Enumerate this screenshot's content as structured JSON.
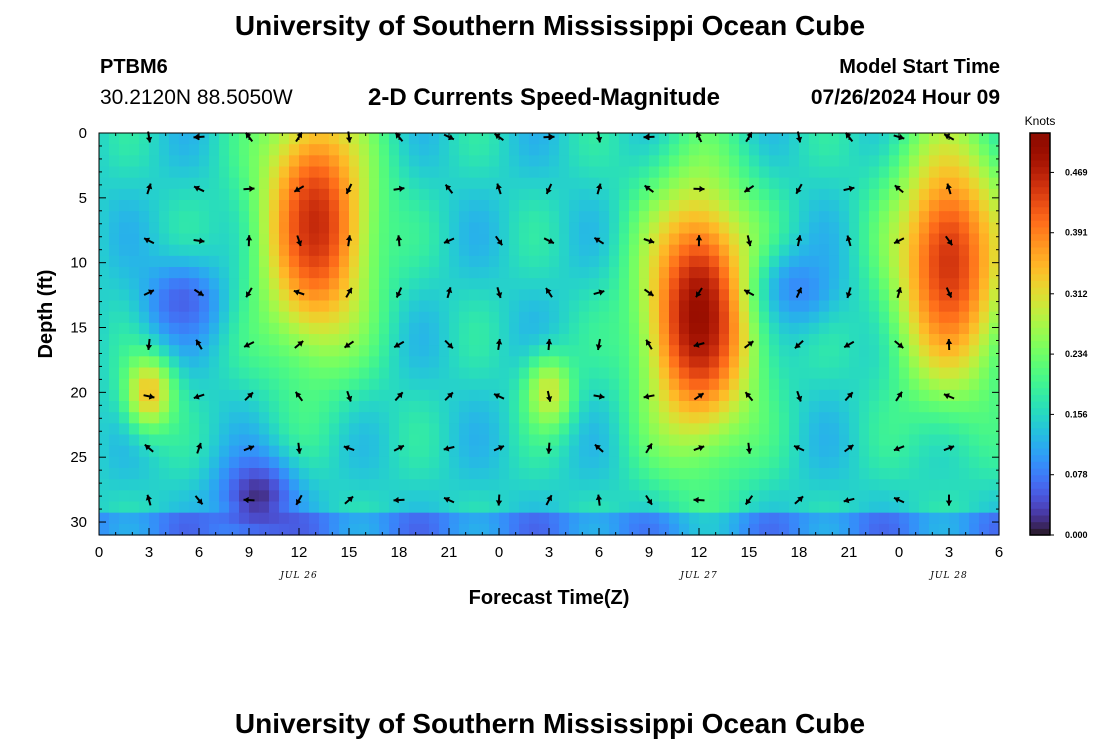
{
  "header": {
    "title": "University of Southern Mississippi Ocean Cube",
    "station_id": "PTBM6",
    "station_coords": "30.2120N  88.5050W",
    "subtitle": "2-D Currents Speed-Magnitude",
    "model_start_label": "Model Start Time",
    "model_start_value": "07/26/2024 Hour 09"
  },
  "footer": {
    "title": "University of Southern Mississippi Ocean Cube"
  },
  "chart_data": {
    "type": "heatmap",
    "title": "2-D Currents Speed-Magnitude",
    "xlabel": "Forecast Time(Z)",
    "ylabel": "Depth (ft)",
    "x_unit": "hours since JUL 26 00Z",
    "x_range": [
      0,
      54
    ],
    "ylim": [
      31,
      0
    ],
    "x_tick_labels": [
      "0",
      "3",
      "6",
      "9",
      "12",
      "15",
      "18",
      "21",
      "0",
      "3",
      "6",
      "9",
      "12",
      "15",
      "18",
      "21",
      "0",
      "3",
      "6"
    ],
    "y_ticks": [
      0,
      5,
      10,
      15,
      20,
      25,
      30
    ],
    "date_labels": [
      {
        "hour": 12,
        "label": "JUL 26"
      },
      {
        "hour": 36,
        "label": "JUL 27"
      },
      {
        "hour": 51,
        "label": "JUL 28"
      }
    ],
    "colorbar": {
      "title": "Knots",
      "range": [
        0,
        0.52
      ],
      "ticks": [
        "0.000",
        "0.078",
        "0.156",
        "0.234",
        "0.312",
        "0.391",
        "0.469"
      ]
    },
    "speed_features": [
      {
        "label": "high",
        "hour": 13,
        "depth": 7,
        "value": 0.46
      },
      {
        "label": "high",
        "hour": 36,
        "depth": 14,
        "value": 0.5
      },
      {
        "label": "high",
        "hour": 51,
        "depth": 10,
        "value": 0.45
      },
      {
        "label": "moderate",
        "hour": 27,
        "depth": 20,
        "value": 0.3
      },
      {
        "label": "moderate",
        "hour": 3,
        "depth": 20,
        "value": 0.34
      },
      {
        "label": "low",
        "hour": 5,
        "depth": 13,
        "value": 0.06
      },
      {
        "label": "low",
        "hour": 9.5,
        "depth": 28,
        "value": 0.02
      },
      {
        "label": "low",
        "hour": 42,
        "depth": 12,
        "value": 0.09
      }
    ],
    "vector_hours": [
      3,
      6,
      9,
      12,
      15,
      18,
      21,
      24,
      27,
      30,
      33,
      36,
      39,
      42,
      45,
      48,
      51
    ],
    "vector_depths": [
      0,
      4,
      8,
      12,
      16,
      20,
      24,
      28
    ]
  }
}
